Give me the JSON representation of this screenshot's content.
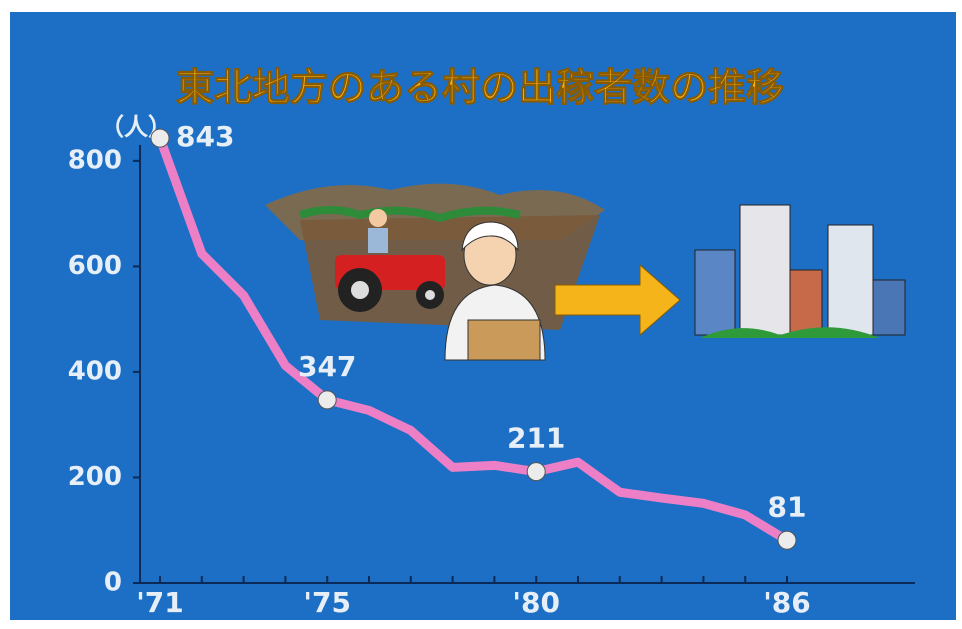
{
  "chart_data": {
    "type": "line",
    "title": "東北地方のある村の出稼者数の推移",
    "y_label": "（人）",
    "categories": [
      "'71",
      null,
      null,
      null,
      "'75",
      null,
      null,
      null,
      null,
      "'80",
      null,
      null,
      null,
      null,
      null,
      "'86"
    ],
    "series": [
      {
        "name": null,
        "color": "#ec7fc6",
        "values": [
          843,
          624,
          545,
          412,
          347,
          327,
          289,
          219,
          223,
          211,
          229,
          172,
          161,
          151,
          129,
          81
        ],
        "value_labels": [
          "843",
          null,
          null,
          null,
          "347",
          null,
          null,
          null,
          null,
          "211",
          null,
          null,
          null,
          null,
          null,
          "81"
        ]
      }
    ],
    "ylim": [
      0,
      830
    ],
    "yticks": [
      0,
      200,
      400,
      600,
      800
    ]
  }
}
